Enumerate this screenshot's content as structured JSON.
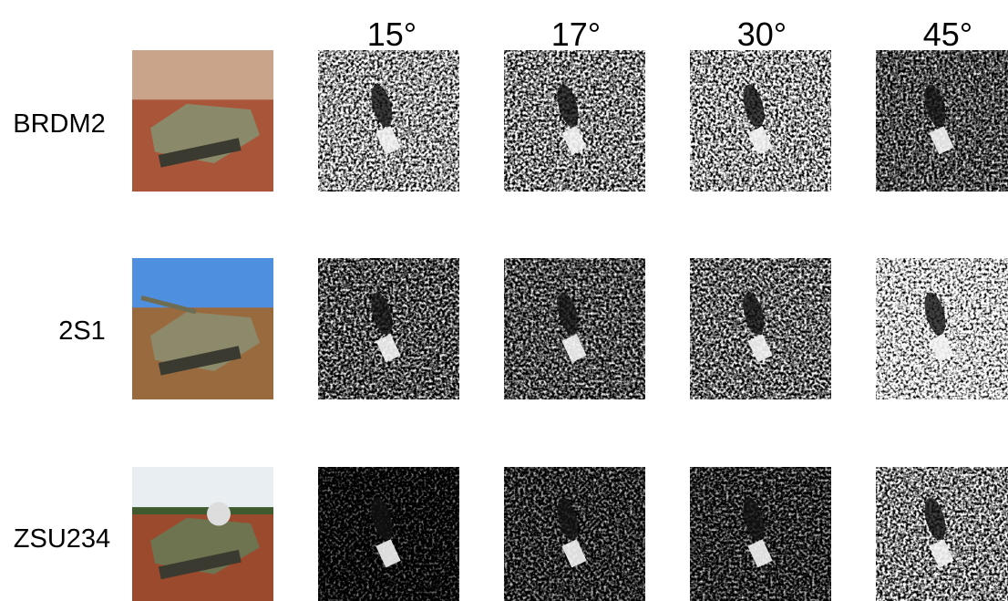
{
  "columns": [
    "15°",
    "17°",
    "30°",
    "45°"
  ],
  "rows": [
    {
      "label": "BRDM2"
    },
    {
      "label": "2S1"
    },
    {
      "label": "ZSU234"
    }
  ]
}
